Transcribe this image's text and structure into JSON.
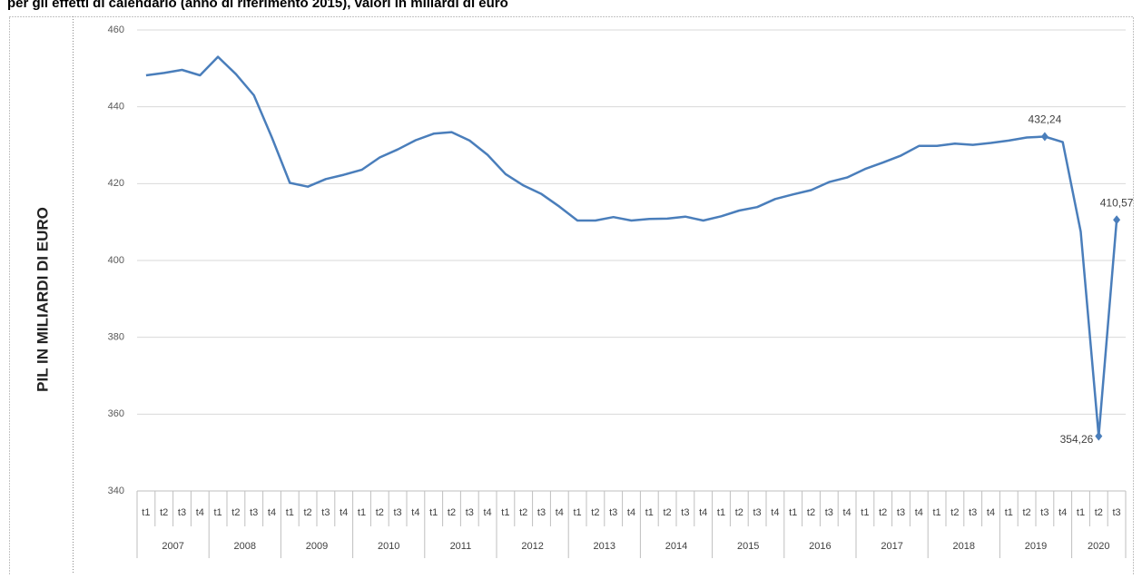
{
  "chart_data": {
    "type": "line",
    "title": "per gli effetti di calendario (anno di riferimento 2015), valori in miliardi di euro",
    "y_label": "PIL IN MILIARDI DI EURO",
    "categories": [
      "t1",
      "t2",
      "t3",
      "t4",
      "t1",
      "t2",
      "t3",
      "t4",
      "t1",
      "t2",
      "t3",
      "t4",
      "t1",
      "t2",
      "t3",
      "t4",
      "t1",
      "t2",
      "t3",
      "t4",
      "t1",
      "t2",
      "t3",
      "t4",
      "t1",
      "t2",
      "t3",
      "t4",
      "t1",
      "t2",
      "t3",
      "t4",
      "t1",
      "t2",
      "t3",
      "t4",
      "t1",
      "t2",
      "t3",
      "t4",
      "t1",
      "t2",
      "t3",
      "t4",
      "t1",
      "t2",
      "t3",
      "t4",
      "t1",
      "t2",
      "t3",
      "t4",
      "t1",
      "t2",
      "t3"
    ],
    "years": [
      "2007",
      "2008",
      "2009",
      "2010",
      "2011",
      "2012",
      "2013",
      "2014",
      "2015",
      "2016",
      "2017",
      "2018",
      "2019",
      "2020"
    ],
    "values": [
      448.2,
      448.8,
      449.6,
      448.2,
      453,
      448.5,
      443,
      432,
      420.2,
      419.2,
      421.2,
      422.3,
      423.6,
      426.8,
      428.9,
      431.3,
      433,
      433.4,
      431.2,
      427.5,
      422.5,
      419.5,
      417.3,
      414,
      410.4,
      410.4,
      411.3,
      410.4,
      410.8,
      410.9,
      411.4,
      410.4,
      411.5,
      413,
      413.9,
      416,
      417.2,
      418.3,
      420.4,
      421.6,
      423.8,
      425.5,
      427.3,
      429.8,
      429.8,
      430.4,
      430.1,
      430.6,
      431.2,
      432,
      432.24,
      430.8,
      407.5,
      354.26,
      410.57
    ],
    "value_labels": [
      null,
      null,
      null,
      null,
      null,
      null,
      null,
      null,
      null,
      null,
      null,
      null,
      null,
      null,
      null,
      null,
      null,
      null,
      null,
      null,
      null,
      null,
      null,
      null,
      null,
      null,
      null,
      null,
      null,
      null,
      null,
      null,
      null,
      null,
      null,
      null,
      null,
      null,
      null,
      null,
      null,
      null,
      null,
      null,
      null,
      null,
      null,
      null,
      null,
      null,
      "432,24",
      null,
      null,
      "354,26",
      "410,57"
    ],
    "color": "#4a7ebb",
    "ylim": [
      340,
      460
    ],
    "yticks": [
      340,
      360,
      380,
      400,
      420,
      440,
      460
    ],
    "grid": true
  }
}
